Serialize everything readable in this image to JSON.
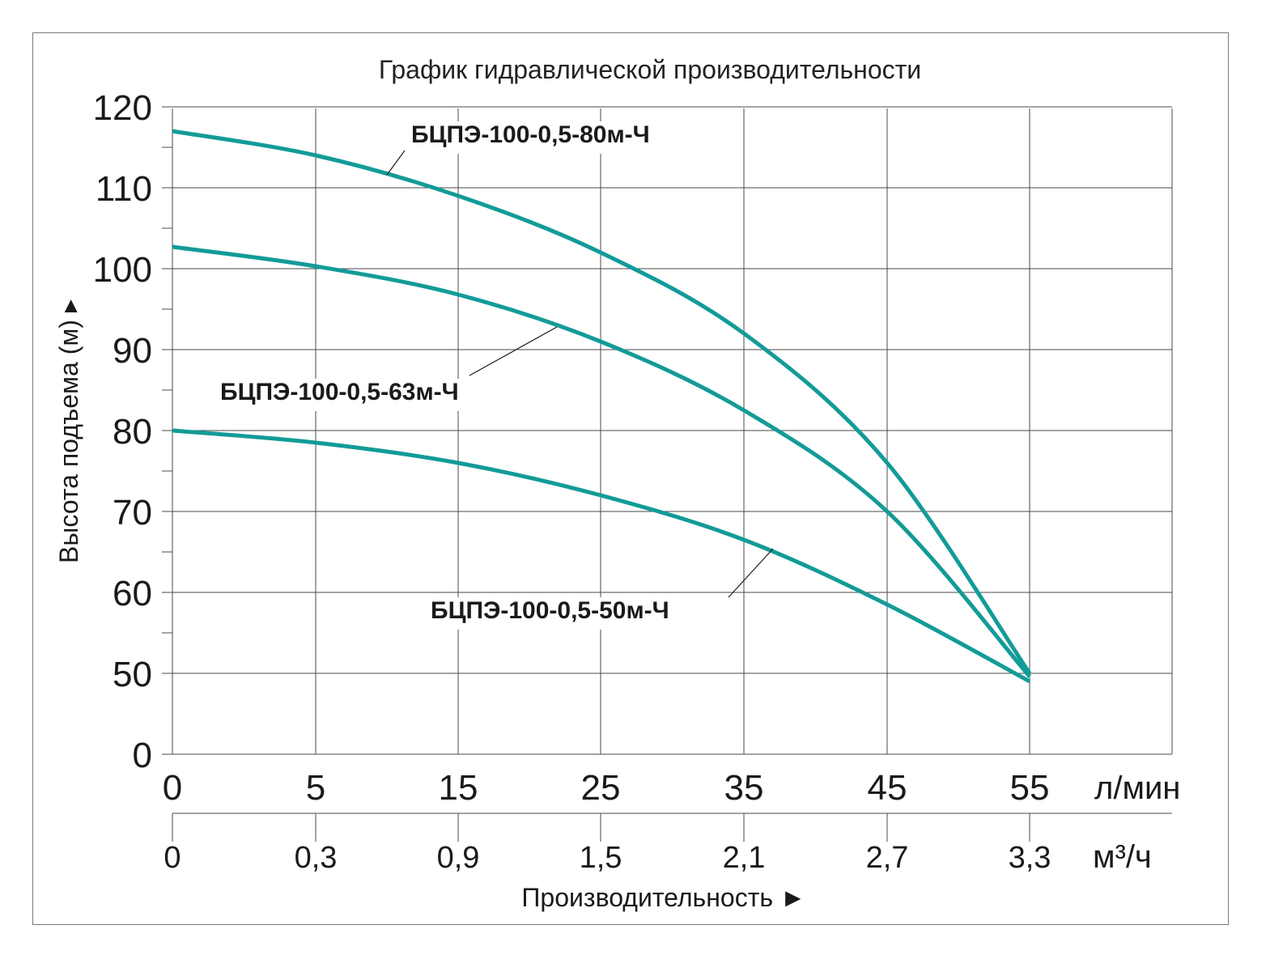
{
  "chart_data": {
    "type": "line",
    "title": "График гидравлической производительности",
    "ylabel": "Высота подъема (м) ▸",
    "xlabel": "Производительность ►",
    "ylim": [
      0,
      120
    ],
    "y_ticks": [
      "0",
      "50",
      "60",
      "70",
      "80",
      "90",
      "100",
      "110",
      "120"
    ],
    "x_ticks_primary": [
      "0",
      "5",
      "15",
      "25",
      "35",
      "45",
      "55"
    ],
    "x_unit_primary": "л/мин",
    "x_ticks_secondary": [
      "0",
      "0,3",
      "0,9",
      "1,5",
      "2,1",
      "2,7",
      "3,3"
    ],
    "x_unit_secondary": "м³/ч",
    "grid": true,
    "series": [
      {
        "name": "БЦПЭ-100-0,5-80м-Ч",
        "color": "#139b98",
        "x": [
          0,
          5,
          15,
          25,
          35,
          45,
          55
        ],
        "values": [
          117,
          114,
          109,
          102,
          92,
          76,
          50
        ]
      },
      {
        "name": "БЦПЭ-100-0,5-63м-Ч",
        "color": "#139b98",
        "x": [
          0,
          5,
          15,
          25,
          35,
          45,
          55
        ],
        "values": [
          102.7,
          100.3,
          96.8,
          91,
          82.5,
          70,
          48
        ]
      },
      {
        "name": "БЦПЭ-100-0,5-50м-Ч",
        "color": "#139b98",
        "x": [
          0,
          5,
          15,
          25,
          35,
          45,
          55
        ],
        "values": [
          80,
          78.5,
          76,
          72,
          66.5,
          58.5,
          45
        ]
      }
    ]
  }
}
